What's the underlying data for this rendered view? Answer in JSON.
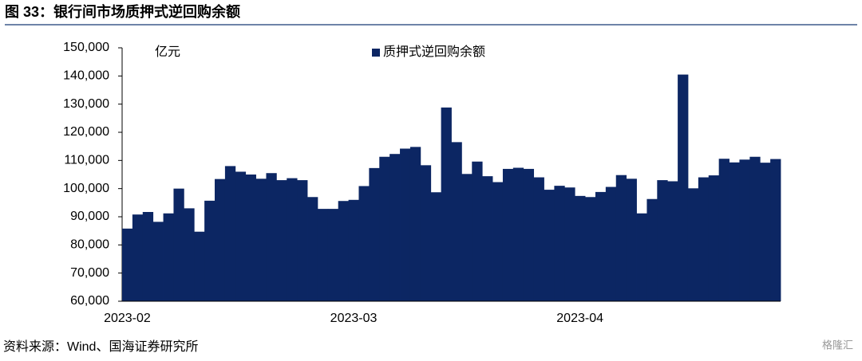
{
  "title": "图 33：银行间市场质押式逆回购余额",
  "source": "资料来源：Wind、国海证券研究所",
  "watermark": "格隆汇",
  "chart_data": {
    "type": "bar",
    "y_unit": "亿元",
    "categories": [
      "2023-02",
      null,
      null,
      null,
      null,
      null,
      null,
      null,
      null,
      null,
      null,
      null,
      null,
      null,
      null,
      null,
      null,
      null,
      null,
      null,
      null,
      null,
      "2023-03",
      null,
      null,
      null,
      null,
      null,
      null,
      null,
      null,
      null,
      null,
      null,
      null,
      null,
      null,
      null,
      null,
      null,
      null,
      null,
      null,
      null,
      "2023-04",
      null,
      null,
      null,
      null,
      null,
      null,
      null,
      null,
      null,
      null,
      null,
      null,
      null,
      null,
      null,
      null,
      null,
      null,
      null
    ],
    "series": [
      {
        "name": "质押式逆回购余额",
        "color": "#0c2663",
        "values": [
          85800,
          90800,
          91700,
          88200,
          91200,
          100000,
          93000,
          84700,
          95700,
          103400,
          108000,
          106000,
          105000,
          103500,
          105500,
          103000,
          103700,
          103000,
          97000,
          92800,
          92800,
          95600,
          96000,
          100900,
          107300,
          111300,
          112300,
          114200,
          114800,
          108300,
          98700,
          128800,
          116500,
          105200,
          109600,
          104400,
          102300,
          107000,
          107400,
          107000,
          104000,
          99600,
          101000,
          100400,
          97400,
          97000,
          98800,
          100600,
          104800,
          103500,
          91200,
          96300,
          103000,
          102600,
          140500,
          100100,
          104000,
          104700,
          110600,
          109300,
          110300,
          111300,
          109200,
          110500
        ]
      }
    ],
    "ylim": [
      60000,
      150000
    ],
    "yticks": [
      {
        "value": 60000,
        "label": "60,000"
      },
      {
        "value": 70000,
        "label": "70,000"
      },
      {
        "value": 80000,
        "label": "80,000"
      },
      {
        "value": 90000,
        "label": "90,000"
      },
      {
        "value": 100000,
        "label": "100,000"
      },
      {
        "value": 110000,
        "label": "110,000"
      },
      {
        "value": 120000,
        "label": "120,000"
      },
      {
        "value": 130000,
        "label": "130,000"
      },
      {
        "value": 140000,
        "label": "140,000"
      },
      {
        "value": 150000,
        "label": "150,000"
      }
    ],
    "legend": "top"
  }
}
